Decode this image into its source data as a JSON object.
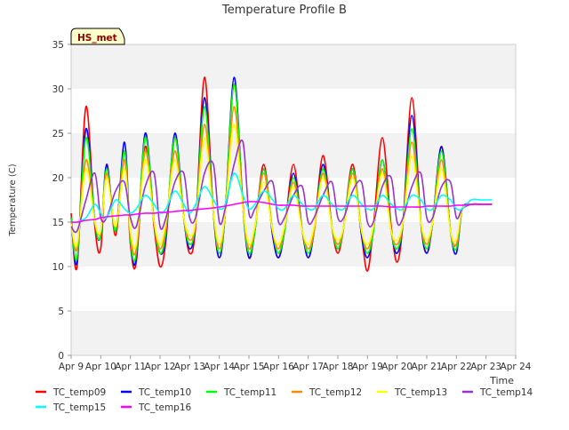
{
  "chart_data": {
    "type": "line",
    "title": "Temperature Profile B",
    "xlabel": "Time",
    "ylabel": "Temperature (C)",
    "xlim": [
      "Apr 9",
      "Apr 24"
    ],
    "ylim": [
      0,
      35
    ],
    "x_ticks": [
      "Apr 9",
      "Apr 10",
      "Apr 11",
      "Apr 12",
      "Apr 13",
      "Apr 14",
      "Apr 15",
      "Apr 16",
      "Apr 17",
      "Apr 18",
      "Apr 19",
      "Apr 20",
      "Apr 21",
      "Apr 22",
      "Apr 23",
      "Apr 24"
    ],
    "y_ticks": [
      0,
      5,
      10,
      15,
      20,
      25,
      30,
      35
    ],
    "grid": "alternating horizontal bands",
    "legend_position": "bottom",
    "site_label": "HS_met",
    "x_days": [
      0.0,
      0.2,
      0.5,
      0.8,
      1.0,
      1.2,
      1.5,
      1.8,
      2.0,
      2.2,
      2.5,
      2.8,
      3.0,
      3.2,
      3.5,
      3.8,
      4.0,
      4.2,
      4.5,
      4.8,
      5.0,
      5.2,
      5.5,
      5.8,
      6.0,
      6.2,
      6.5,
      6.8,
      7.0,
      7.2,
      7.5,
      7.8,
      8.0,
      8.2,
      8.5,
      8.8,
      9.0,
      9.2,
      9.5,
      9.8,
      10.0,
      10.2,
      10.5,
      10.8,
      11.0,
      11.2,
      11.5,
      11.8,
      12.0,
      12.2,
      12.5,
      12.8,
      13.0,
      13.2,
      13.5,
      13.8,
      14.0,
      14.2
    ],
    "series": [
      {
        "name": "TC_temp09",
        "color": "#ff0000",
        "values": [
          16.0,
          10.0,
          28.0,
          14.5,
          12.0,
          21.5,
          13.5,
          23.0,
          12.5,
          10.5,
          23.5,
          14.5,
          10.0,
          13.0,
          24.5,
          15.5,
          11.5,
          14.5,
          31.3,
          16.0,
          11.0,
          16.0,
          30.5,
          17.0,
          11.0,
          14.0,
          21.5,
          13.5,
          11.0,
          14.0,
          21.5,
          14.0,
          11.0,
          14.0,
          22.5,
          14.5,
          11.5,
          14.5,
          21.5,
          13.5,
          9.5,
          14.5,
          24.5,
          14.5,
          10.5,
          15.0,
          29.0,
          15.0,
          11.5,
          15.0,
          23.5,
          14.0,
          12.5,
          16.5,
          17.0,
          17.0,
          17.0,
          17.0
        ]
      },
      {
        "name": "TC_temp10",
        "color": "#0000ff",
        "values": [
          15.5,
          10.5,
          25.5,
          15.0,
          13.5,
          21.5,
          14.0,
          24.0,
          13.0,
          11.0,
          25.0,
          15.0,
          11.5,
          13.5,
          25.0,
          15.5,
          12.0,
          15.0,
          29.0,
          16.0,
          11.0,
          16.0,
          31.3,
          16.5,
          11.0,
          14.0,
          21.0,
          13.5,
          11.0,
          14.0,
          20.5,
          14.0,
          11.0,
          14.0,
          21.5,
          14.5,
          12.0,
          14.5,
          21.0,
          13.5,
          11.0,
          14.0,
          22.0,
          14.0,
          11.5,
          15.0,
          27.0,
          15.0,
          11.5,
          15.0,
          23.5,
          14.0,
          11.5,
          16.5,
          17.0,
          17.0,
          17.0,
          17.0
        ]
      },
      {
        "name": "TC_temp11",
        "color": "#00ff00",
        "values": [
          15.5,
          11.0,
          24.5,
          15.0,
          13.5,
          21.0,
          14.0,
          23.0,
          13.0,
          11.5,
          24.5,
          15.0,
          11.5,
          14.0,
          24.5,
          15.5,
          12.5,
          15.0,
          28.0,
          16.0,
          11.5,
          16.0,
          30.5,
          16.5,
          11.5,
          14.0,
          21.0,
          14.0,
          11.5,
          14.0,
          20.0,
          14.0,
          11.5,
          14.0,
          21.0,
          14.5,
          12.0,
          14.5,
          21.0,
          14.0,
          11.5,
          14.0,
          22.0,
          14.0,
          12.0,
          15.0,
          25.5,
          15.0,
          12.0,
          15.0,
          23.0,
          14.0,
          12.0,
          16.5,
          17.0,
          17.0,
          17.0,
          17.0
        ]
      },
      {
        "name": "TC_temp12",
        "color": "#ff8c00",
        "values": [
          15.0,
          12.0,
          22.0,
          15.0,
          14.0,
          20.5,
          14.5,
          22.0,
          13.5,
          12.0,
          23.0,
          15.0,
          12.0,
          14.5,
          23.0,
          15.5,
          13.0,
          15.0,
          26.0,
          16.0,
          12.0,
          16.0,
          28.0,
          16.5,
          12.0,
          14.5,
          20.5,
          14.0,
          12.0,
          14.5,
          19.5,
          14.0,
          12.0,
          14.0,
          20.5,
          14.5,
          12.5,
          14.5,
          20.5,
          14.0,
          12.0,
          14.5,
          21.0,
          14.0,
          12.5,
          15.0,
          24.0,
          15.0,
          12.5,
          15.0,
          22.0,
          14.0,
          12.5,
          16.5,
          17.0,
          17.0,
          17.0,
          17.0
        ]
      },
      {
        "name": "TC_temp13",
        "color": "#ffff00",
        "values": [
          14.8,
          12.5,
          21.0,
          15.0,
          14.0,
          20.0,
          14.5,
          21.0,
          14.0,
          12.5,
          22.0,
          15.0,
          12.5,
          15.0,
          22.0,
          15.5,
          13.5,
          15.0,
          24.5,
          16.0,
          12.5,
          16.0,
          26.0,
          16.5,
          12.5,
          14.5,
          19.5,
          14.0,
          12.5,
          14.5,
          19.0,
          14.0,
          12.5,
          14.5,
          20.0,
          14.5,
          13.0,
          14.5,
          20.0,
          14.0,
          12.5,
          14.5,
          20.5,
          14.0,
          13.0,
          15.0,
          22.5,
          15.0,
          13.0,
          15.0,
          21.0,
          14.0,
          13.0,
          16.5,
          17.0,
          17.0,
          17.0,
          17.0
        ]
      },
      {
        "name": "TC_temp14",
        "color": "#9932cc",
        "values": [
          14.5,
          14.0,
          17.5,
          20.5,
          15.5,
          15.5,
          18.5,
          19.5,
          15.5,
          14.5,
          19.0,
          20.5,
          14.5,
          15.5,
          19.5,
          20.5,
          15.5,
          15.5,
          20.5,
          21.5,
          15.0,
          16.5,
          21.5,
          24.0,
          16.0,
          16.5,
          18.5,
          19.5,
          15.0,
          15.5,
          18.0,
          19.0,
          15.0,
          15.5,
          18.0,
          19.5,
          15.5,
          15.5,
          18.5,
          19.5,
          15.0,
          15.0,
          19.0,
          20.0,
          15.0,
          15.5,
          19.0,
          20.5,
          15.5,
          15.5,
          19.0,
          19.5,
          15.5,
          16.5,
          17.0,
          17.0,
          17.0,
          17.0
        ]
      },
      {
        "name": "TC_temp15",
        "color": "#00ffff",
        "values": [
          15.0,
          15.0,
          15.5,
          17.0,
          16.0,
          15.5,
          17.5,
          16.5,
          16.0,
          16.5,
          18.0,
          17.0,
          16.0,
          16.5,
          18.5,
          17.0,
          16.0,
          17.0,
          19.0,
          17.5,
          16.5,
          17.0,
          20.5,
          18.0,
          16.5,
          17.0,
          18.5,
          17.5,
          16.5,
          16.5,
          18.0,
          17.0,
          16.5,
          16.5,
          18.0,
          17.0,
          16.5,
          16.5,
          18.0,
          17.0,
          16.5,
          16.5,
          18.0,
          17.0,
          16.5,
          16.5,
          18.0,
          17.5,
          16.5,
          16.5,
          18.0,
          17.5,
          16.5,
          16.5,
          17.5,
          17.5,
          17.5,
          17.5
        ]
      },
      {
        "name": "TC_temp16",
        "color": "#ff00ff",
        "values": [
          15.0,
          15.0,
          15.2,
          15.3,
          15.5,
          15.6,
          15.7,
          15.8,
          15.8,
          15.9,
          16.0,
          16.0,
          16.1,
          16.1,
          16.2,
          16.3,
          16.3,
          16.4,
          16.5,
          16.6,
          16.7,
          16.8,
          17.0,
          17.2,
          17.3,
          17.3,
          17.2,
          17.0,
          16.9,
          16.9,
          16.9,
          16.8,
          16.8,
          16.8,
          16.8,
          16.8,
          16.8,
          16.8,
          16.8,
          16.8,
          16.8,
          16.8,
          16.8,
          16.7,
          16.7,
          16.7,
          16.7,
          16.7,
          16.8,
          16.8,
          16.8,
          16.8,
          16.9,
          16.9,
          17.0,
          17.0,
          17.0,
          17.0
        ]
      }
    ]
  }
}
